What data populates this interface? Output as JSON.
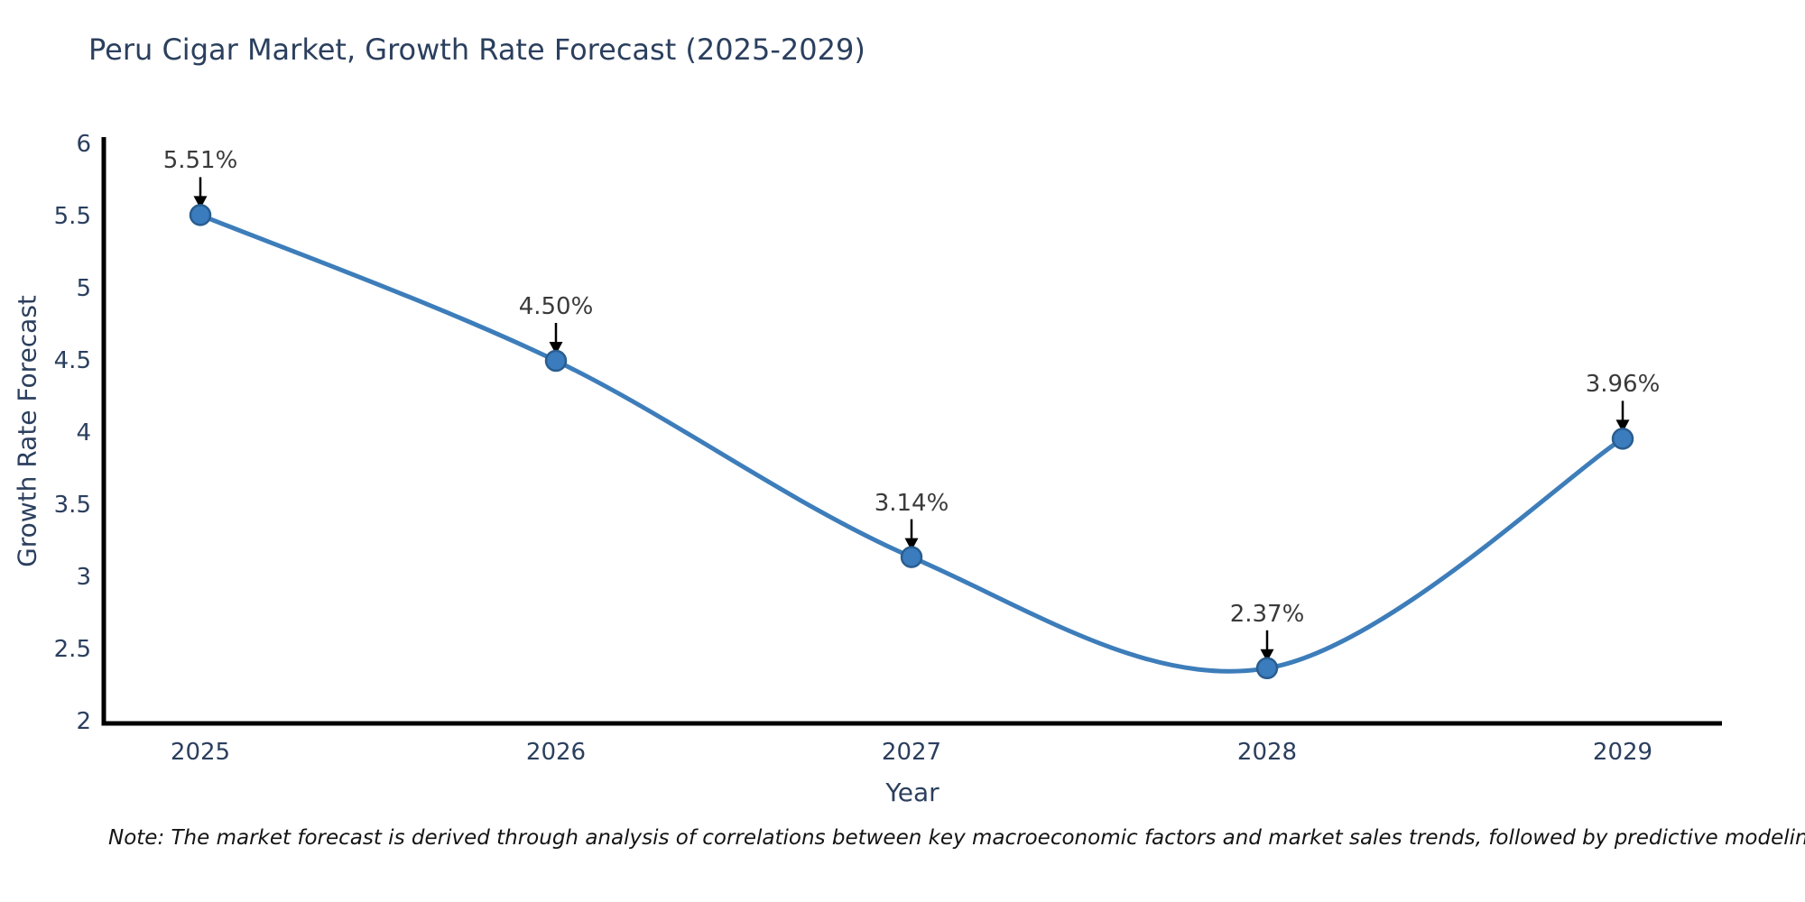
{
  "title": {
    "text": "Peru Cigar Market, Growth Rate Forecast (2025-2029)"
  },
  "note": {
    "text": "Note: The market forecast is derived through analysis of correlations between key macroeconomic factors and market sales trends, followed by predictive modeling to project future sales"
  },
  "chart_data": {
    "type": "line",
    "line_shape": "spline",
    "title": "Peru Cigar Market, Growth Rate Forecast (2025-2029)",
    "xlabel": "Year",
    "ylabel": "Growth Rate Forecast",
    "x": [
      2025,
      2026,
      2027,
      2028,
      2029
    ],
    "xtick_labels": [
      "2025",
      "2026",
      "2027",
      "2028",
      "2029"
    ],
    "values": [
      5.51,
      4.5,
      3.14,
      2.37,
      3.96
    ],
    "point_labels": [
      "5.51%",
      "4.50%",
      "3.14%",
      "2.37%",
      "3.96%"
    ],
    "ylim": [
      2,
      6
    ],
    "yticks": [
      2,
      2.5,
      3,
      3.5,
      4,
      4.5,
      5,
      5.5,
      6
    ],
    "ytick_labels": [
      "2",
      "2.5",
      "3",
      "3.5",
      "4",
      "4.5",
      "5",
      "5.5",
      "6"
    ],
    "grid": false,
    "legend": "none",
    "markers": true,
    "annotations": "arrow-to-point",
    "colors": {
      "line": "#3d7dba",
      "marker_fill": "#3a7cbd",
      "marker_edge": "#2a5d8f",
      "axis": "#000000",
      "arrow": "#000000",
      "title_text": "#2b3f5e",
      "tick_text": "#2b3f5e",
      "annotation_text": "#3a3a3a",
      "note_text": "#141414",
      "background": "#ffffff"
    }
  }
}
